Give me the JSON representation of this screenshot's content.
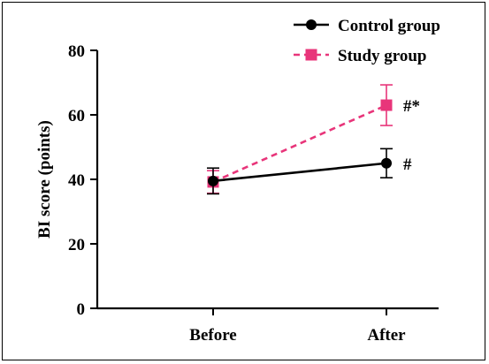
{
  "chart_data": {
    "type": "line",
    "categories": [
      "Before",
      "After"
    ],
    "ylabel": "BI score (points)",
    "xlabel": "",
    "ylim": [
      0,
      80
    ],
    "yticks": [
      0,
      20,
      40,
      60,
      80
    ],
    "grid": false,
    "legend_position": "top-right",
    "series": [
      {
        "name": "Control group",
        "values": [
          39.5,
          45
        ],
        "errors": [
          4,
          4.5
        ],
        "color": "#000000",
        "marker": "circle",
        "line_style": "solid",
        "annotations": [
          "",
          "#"
        ]
      },
      {
        "name": "Study group",
        "values": [
          39.2,
          63
        ],
        "errors": [
          3.5,
          6.3
        ],
        "color": "#e8357a",
        "marker": "square",
        "line_style": "dashed",
        "annotations": [
          "",
          "#*"
        ]
      }
    ]
  }
}
